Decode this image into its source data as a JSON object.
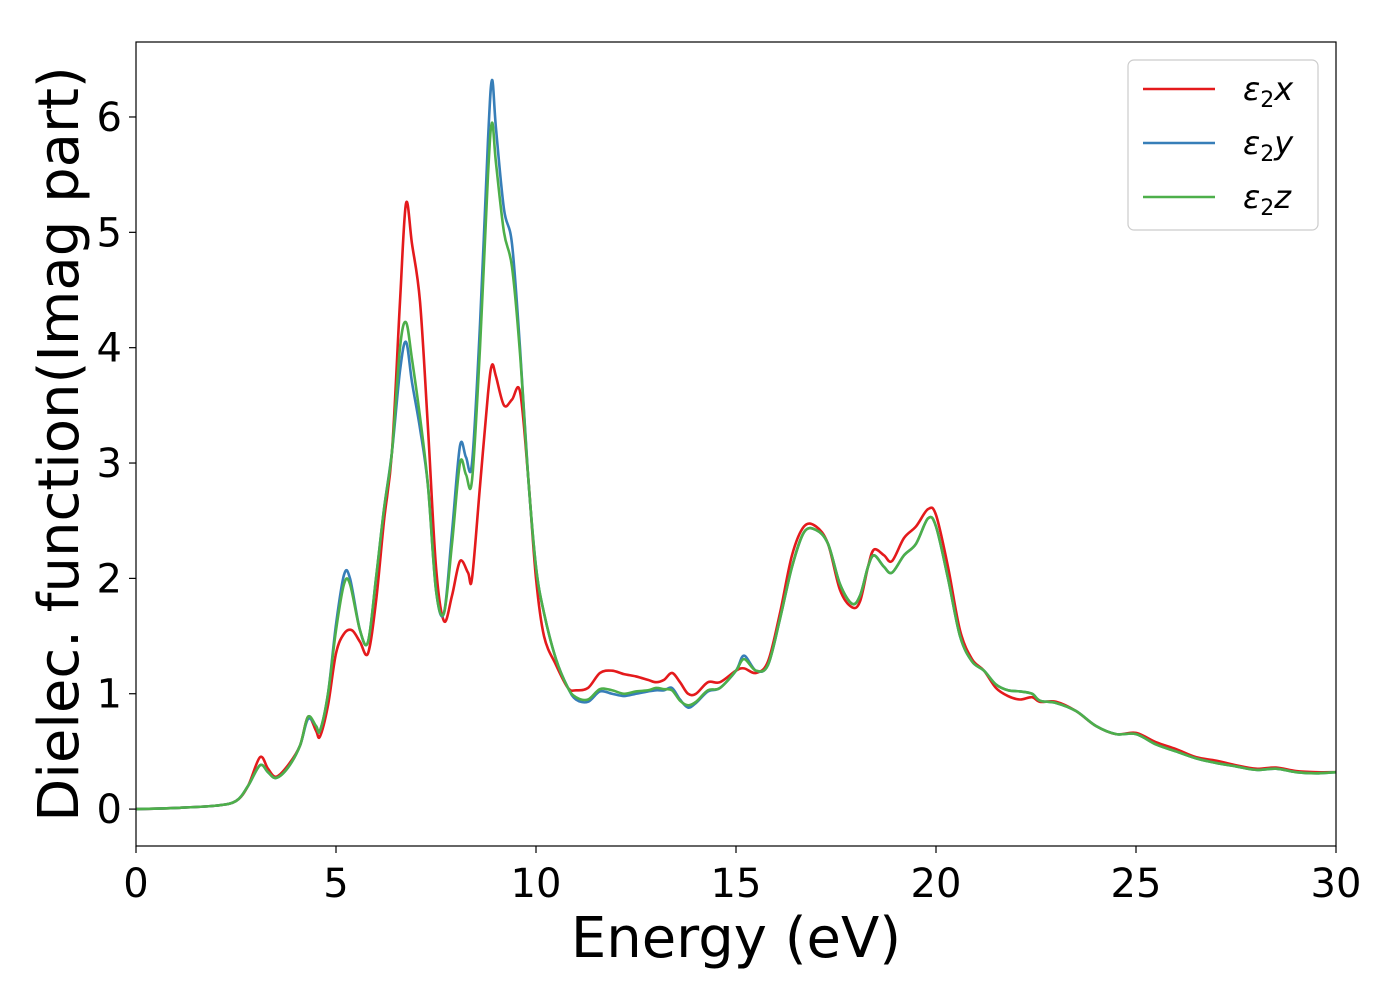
{
  "chart_data": {
    "type": "line",
    "xlabel": "Energy (eV)",
    "ylabel": "Dielec. function(Imag part)",
    "xlim": [
      0,
      30
    ],
    "ylim": [
      -0.32,
      6.65
    ],
    "xticks": [
      0,
      5,
      10,
      15,
      20,
      25,
      30
    ],
    "yticks": [
      0,
      1,
      2,
      3,
      4,
      5,
      6
    ],
    "grid": false,
    "legend_position": "top-right",
    "series": [
      {
        "name": "ε₂x",
        "legend": {
          "symbol": "ε",
          "sub": "2",
          "suffix": "x"
        },
        "color": "#e41a1c",
        "points": [
          [
            0,
            0
          ],
          [
            1,
            0.01
          ],
          [
            2,
            0.03
          ],
          [
            2.5,
            0.07
          ],
          [
            2.8,
            0.2
          ],
          [
            3.1,
            0.45
          ],
          [
            3.3,
            0.35
          ],
          [
            3.5,
            0.28
          ],
          [
            3.8,
            0.38
          ],
          [
            4.1,
            0.55
          ],
          [
            4.3,
            0.8
          ],
          [
            4.5,
            0.68
          ],
          [
            4.6,
            0.63
          ],
          [
            4.8,
            0.9
          ],
          [
            5.0,
            1.35
          ],
          [
            5.2,
            1.52
          ],
          [
            5.4,
            1.55
          ],
          [
            5.6,
            1.45
          ],
          [
            5.8,
            1.35
          ],
          [
            6.0,
            1.8
          ],
          [
            6.2,
            2.5
          ],
          [
            6.4,
            3.1
          ],
          [
            6.6,
            4.4
          ],
          [
            6.75,
            5.25
          ],
          [
            6.9,
            4.9
          ],
          [
            7.1,
            4.4
          ],
          [
            7.3,
            3.3
          ],
          [
            7.5,
            2.1
          ],
          [
            7.7,
            1.63
          ],
          [
            7.9,
            1.85
          ],
          [
            8.1,
            2.15
          ],
          [
            8.3,
            2.05
          ],
          [
            8.4,
            2.0
          ],
          [
            8.6,
            2.8
          ],
          [
            8.8,
            3.6
          ],
          [
            8.9,
            3.85
          ],
          [
            9.0,
            3.75
          ],
          [
            9.2,
            3.5
          ],
          [
            9.4,
            3.55
          ],
          [
            9.6,
            3.62
          ],
          [
            9.8,
            2.9
          ],
          [
            10.0,
            2.0
          ],
          [
            10.2,
            1.5
          ],
          [
            10.5,
            1.25
          ],
          [
            10.8,
            1.05
          ],
          [
            11.0,
            1.03
          ],
          [
            11.3,
            1.05
          ],
          [
            11.6,
            1.18
          ],
          [
            11.9,
            1.2
          ],
          [
            12.2,
            1.17
          ],
          [
            12.5,
            1.15
          ],
          [
            12.8,
            1.12
          ],
          [
            13.0,
            1.1
          ],
          [
            13.2,
            1.12
          ],
          [
            13.4,
            1.18
          ],
          [
            13.6,
            1.1
          ],
          [
            13.8,
            1.0
          ],
          [
            14.0,
            1.0
          ],
          [
            14.3,
            1.1
          ],
          [
            14.6,
            1.1
          ],
          [
            15.0,
            1.2
          ],
          [
            15.2,
            1.22
          ],
          [
            15.5,
            1.18
          ],
          [
            15.8,
            1.28
          ],
          [
            16.1,
            1.7
          ],
          [
            16.4,
            2.2
          ],
          [
            16.7,
            2.45
          ],
          [
            17.0,
            2.45
          ],
          [
            17.3,
            2.3
          ],
          [
            17.6,
            1.9
          ],
          [
            17.9,
            1.75
          ],
          [
            18.1,
            1.8
          ],
          [
            18.3,
            2.1
          ],
          [
            18.45,
            2.25
          ],
          [
            18.7,
            2.2
          ],
          [
            18.9,
            2.15
          ],
          [
            19.2,
            2.35
          ],
          [
            19.5,
            2.45
          ],
          [
            19.8,
            2.6
          ],
          [
            20.0,
            2.55
          ],
          [
            20.3,
            2.1
          ],
          [
            20.6,
            1.55
          ],
          [
            20.9,
            1.3
          ],
          [
            21.2,
            1.2
          ],
          [
            21.5,
            1.05
          ],
          [
            21.8,
            0.98
          ],
          [
            22.1,
            0.95
          ],
          [
            22.4,
            0.97
          ],
          [
            22.6,
            0.93
          ],
          [
            23.0,
            0.93
          ],
          [
            23.5,
            0.85
          ],
          [
            24.0,
            0.72
          ],
          [
            24.5,
            0.65
          ],
          [
            25.0,
            0.66
          ],
          [
            25.5,
            0.58
          ],
          [
            26.0,
            0.52
          ],
          [
            26.5,
            0.45
          ],
          [
            27.0,
            0.42
          ],
          [
            27.5,
            0.38
          ],
          [
            28.0,
            0.35
          ],
          [
            28.5,
            0.36
          ],
          [
            29.0,
            0.33
          ],
          [
            29.5,
            0.32
          ],
          [
            30,
            0.32
          ]
        ]
      },
      {
        "name": "ε₂y",
        "legend": {
          "symbol": "ε",
          "sub": "2",
          "suffix": "y"
        },
        "color": "#377eb8",
        "points": [
          [
            0,
            0
          ],
          [
            1,
            0.01
          ],
          [
            2,
            0.03
          ],
          [
            2.5,
            0.07
          ],
          [
            2.8,
            0.2
          ],
          [
            3.1,
            0.38
          ],
          [
            3.3,
            0.32
          ],
          [
            3.5,
            0.27
          ],
          [
            3.8,
            0.36
          ],
          [
            4.1,
            0.55
          ],
          [
            4.3,
            0.78
          ],
          [
            4.5,
            0.72
          ],
          [
            4.6,
            0.68
          ],
          [
            4.8,
            1.0
          ],
          [
            5.0,
            1.6
          ],
          [
            5.2,
            2.03
          ],
          [
            5.35,
            2.0
          ],
          [
            5.6,
            1.55
          ],
          [
            5.8,
            1.45
          ],
          [
            6.0,
            2.0
          ],
          [
            6.2,
            2.6
          ],
          [
            6.4,
            3.1
          ],
          [
            6.6,
            3.8
          ],
          [
            6.75,
            4.05
          ],
          [
            6.9,
            3.7
          ],
          [
            7.1,
            3.3
          ],
          [
            7.3,
            2.8
          ],
          [
            7.5,
            1.9
          ],
          [
            7.7,
            1.7
          ],
          [
            7.9,
            2.4
          ],
          [
            8.1,
            3.15
          ],
          [
            8.25,
            3.05
          ],
          [
            8.4,
            3.0
          ],
          [
            8.6,
            4.2
          ],
          [
            8.8,
            5.8
          ],
          [
            8.9,
            6.32
          ],
          [
            9.0,
            5.9
          ],
          [
            9.2,
            5.2
          ],
          [
            9.4,
            4.9
          ],
          [
            9.6,
            4.0
          ],
          [
            9.8,
            2.9
          ],
          [
            10.0,
            2.1
          ],
          [
            10.2,
            1.7
          ],
          [
            10.5,
            1.3
          ],
          [
            10.8,
            1.05
          ],
          [
            11.0,
            0.95
          ],
          [
            11.3,
            0.93
          ],
          [
            11.6,
            1.02
          ],
          [
            11.9,
            1.0
          ],
          [
            12.2,
            0.98
          ],
          [
            12.5,
            1.0
          ],
          [
            12.8,
            1.02
          ],
          [
            13.0,
            1.03
          ],
          [
            13.2,
            1.03
          ],
          [
            13.4,
            1.05
          ],
          [
            13.6,
            0.95
          ],
          [
            13.8,
            0.88
          ],
          [
            14.0,
            0.92
          ],
          [
            14.3,
            1.02
          ],
          [
            14.6,
            1.05
          ],
          [
            15.0,
            1.2
          ],
          [
            15.2,
            1.33
          ],
          [
            15.5,
            1.2
          ],
          [
            15.8,
            1.25
          ],
          [
            16.1,
            1.65
          ],
          [
            16.4,
            2.1
          ],
          [
            16.7,
            2.4
          ],
          [
            17.0,
            2.42
          ],
          [
            17.3,
            2.3
          ],
          [
            17.6,
            1.95
          ],
          [
            17.9,
            1.78
          ],
          [
            18.1,
            1.85
          ],
          [
            18.3,
            2.1
          ],
          [
            18.45,
            2.2
          ],
          [
            18.7,
            2.1
          ],
          [
            18.9,
            2.05
          ],
          [
            19.2,
            2.2
          ],
          [
            19.5,
            2.3
          ],
          [
            19.8,
            2.52
          ],
          [
            20.0,
            2.45
          ],
          [
            20.3,
            2.0
          ],
          [
            20.6,
            1.5
          ],
          [
            20.9,
            1.28
          ],
          [
            21.2,
            1.2
          ],
          [
            21.5,
            1.08
          ],
          [
            21.8,
            1.03
          ],
          [
            22.1,
            1.02
          ],
          [
            22.4,
            1.0
          ],
          [
            22.6,
            0.94
          ],
          [
            23.0,
            0.92
          ],
          [
            23.5,
            0.85
          ],
          [
            24.0,
            0.72
          ],
          [
            24.5,
            0.65
          ],
          [
            25.0,
            0.65
          ],
          [
            25.5,
            0.56
          ],
          [
            26.0,
            0.5
          ],
          [
            26.5,
            0.44
          ],
          [
            27.0,
            0.4
          ],
          [
            27.5,
            0.37
          ],
          [
            28.0,
            0.34
          ],
          [
            28.5,
            0.35
          ],
          [
            29.0,
            0.32
          ],
          [
            29.5,
            0.31
          ],
          [
            30,
            0.32
          ]
        ]
      },
      {
        "name": "ε₂z",
        "legend": {
          "symbol": "ε",
          "sub": "2",
          "suffix": "z"
        },
        "color": "#4daf4a",
        "points": [
          [
            0,
            0
          ],
          [
            1,
            0.01
          ],
          [
            2,
            0.03
          ],
          [
            2.5,
            0.07
          ],
          [
            2.8,
            0.2
          ],
          [
            3.1,
            0.38
          ],
          [
            3.3,
            0.32
          ],
          [
            3.5,
            0.27
          ],
          [
            3.8,
            0.36
          ],
          [
            4.1,
            0.55
          ],
          [
            4.3,
            0.8
          ],
          [
            4.5,
            0.72
          ],
          [
            4.6,
            0.68
          ],
          [
            4.8,
            1.0
          ],
          [
            5.0,
            1.55
          ],
          [
            5.2,
            1.95
          ],
          [
            5.35,
            1.95
          ],
          [
            5.6,
            1.55
          ],
          [
            5.8,
            1.45
          ],
          [
            6.0,
            2.0
          ],
          [
            6.2,
            2.6
          ],
          [
            6.4,
            3.1
          ],
          [
            6.6,
            4.0
          ],
          [
            6.75,
            4.22
          ],
          [
            6.9,
            3.9
          ],
          [
            7.1,
            3.4
          ],
          [
            7.3,
            2.8
          ],
          [
            7.5,
            1.9
          ],
          [
            7.7,
            1.7
          ],
          [
            7.9,
            2.3
          ],
          [
            8.1,
            3.0
          ],
          [
            8.25,
            2.9
          ],
          [
            8.4,
            2.85
          ],
          [
            8.6,
            4.0
          ],
          [
            8.8,
            5.5
          ],
          [
            8.9,
            5.95
          ],
          [
            9.0,
            5.6
          ],
          [
            9.2,
            5.0
          ],
          [
            9.4,
            4.7
          ],
          [
            9.6,
            3.95
          ],
          [
            9.8,
            2.9
          ],
          [
            10.0,
            2.1
          ],
          [
            10.2,
            1.7
          ],
          [
            10.5,
            1.3
          ],
          [
            10.8,
            1.05
          ],
          [
            11.0,
            0.97
          ],
          [
            11.3,
            0.95
          ],
          [
            11.6,
            1.04
          ],
          [
            11.9,
            1.03
          ],
          [
            12.2,
            1.0
          ],
          [
            12.5,
            1.02
          ],
          [
            12.8,
            1.03
          ],
          [
            13.0,
            1.05
          ],
          [
            13.2,
            1.04
          ],
          [
            13.4,
            1.03
          ],
          [
            13.6,
            0.94
          ],
          [
            13.8,
            0.9
          ],
          [
            14.0,
            0.93
          ],
          [
            14.3,
            1.03
          ],
          [
            14.6,
            1.05
          ],
          [
            15.0,
            1.2
          ],
          [
            15.2,
            1.3
          ],
          [
            15.5,
            1.2
          ],
          [
            15.8,
            1.25
          ],
          [
            16.1,
            1.65
          ],
          [
            16.4,
            2.1
          ],
          [
            16.7,
            2.4
          ],
          [
            17.0,
            2.42
          ],
          [
            17.3,
            2.3
          ],
          [
            17.6,
            1.95
          ],
          [
            17.9,
            1.78
          ],
          [
            18.1,
            1.85
          ],
          [
            18.3,
            2.1
          ],
          [
            18.45,
            2.2
          ],
          [
            18.7,
            2.1
          ],
          [
            18.9,
            2.05
          ],
          [
            19.2,
            2.2
          ],
          [
            19.5,
            2.3
          ],
          [
            19.8,
            2.52
          ],
          [
            20.0,
            2.45
          ],
          [
            20.3,
            2.0
          ],
          [
            20.6,
            1.5
          ],
          [
            20.9,
            1.28
          ],
          [
            21.2,
            1.2
          ],
          [
            21.5,
            1.08
          ],
          [
            21.8,
            1.03
          ],
          [
            22.1,
            1.02
          ],
          [
            22.4,
            1.0
          ],
          [
            22.6,
            0.94
          ],
          [
            23.0,
            0.92
          ],
          [
            23.5,
            0.85
          ],
          [
            24.0,
            0.72
          ],
          [
            24.5,
            0.65
          ],
          [
            25.0,
            0.65
          ],
          [
            25.5,
            0.56
          ],
          [
            26.0,
            0.5
          ],
          [
            26.5,
            0.44
          ],
          [
            27.0,
            0.4
          ],
          [
            27.5,
            0.37
          ],
          [
            28.0,
            0.34
          ],
          [
            28.5,
            0.35
          ],
          [
            29.0,
            0.32
          ],
          [
            29.5,
            0.31
          ],
          [
            30,
            0.32
          ]
        ]
      }
    ]
  }
}
